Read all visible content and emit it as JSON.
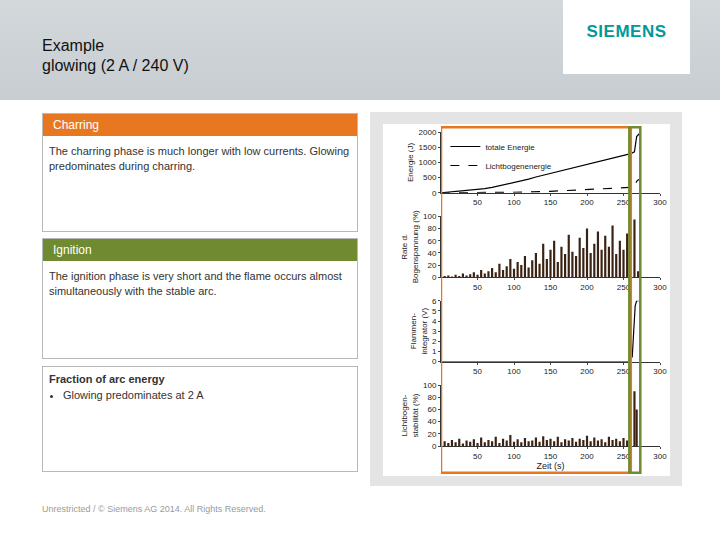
{
  "header": {
    "title": "Example",
    "subtitle": "glowing (2 A / 240 V)",
    "logo": "SIEMENS"
  },
  "panels": [
    {
      "title": "Charring",
      "color": "#e87722",
      "text": "The charring phase is much longer with low currents. Glowing predominates during charring.",
      "phase": {
        "start": 0,
        "end": 260
      }
    },
    {
      "title": "Ignition",
      "color": "#6f8a31",
      "text": "The ignition phase is very short and the flame occurs almost simultaneously with the stable arc.",
      "phase": {
        "start": 258,
        "end": 273
      }
    },
    {
      "title": "Fraction of arc energy",
      "bullets": [
        "Glowing predominates at 2 A"
      ]
    }
  ],
  "footer": "Unrestricted / © Siemens AG 2014. All Rights Reserved.",
  "chart_data": [
    {
      "type": "line",
      "ylabel": [
        "Energie (J)"
      ],
      "xlim": [
        0,
        300
      ],
      "xticks": [
        50,
        100,
        150,
        200,
        250,
        300
      ],
      "ylim": [
        0,
        2000
      ],
      "yticks": [
        0,
        500,
        1000,
        1500,
        2000
      ],
      "legend": "upper left",
      "series": [
        {
          "name": "totale Energie",
          "color": "#000000",
          "line_style": "solid",
          "x": [
            0,
            10,
            20,
            30,
            40,
            50,
            60,
            70,
            80,
            90,
            100,
            110,
            120,
            130,
            140,
            150,
            160,
            170,
            180,
            190,
            200,
            210,
            220,
            230,
            240,
            250,
            260,
            265,
            268,
            270,
            272
          ],
          "values": [
            0,
            20,
            40,
            60,
            80,
            110,
            140,
            180,
            230,
            280,
            340,
            400,
            450,
            520,
            580,
            650,
            700,
            760,
            820,
            880,
            940,
            1000,
            1060,
            1120,
            1180,
            1240,
            1290,
            1350,
            1850,
            1900,
            1950
          ]
        },
        {
          "name": "Lichtbogenenergie",
          "color": "#000000",
          "line_style": "dashed",
          "x": [
            0,
            50,
            100,
            150,
            200,
            250,
            260,
            265,
            268,
            270,
            272
          ],
          "values": [
            0,
            5,
            20,
            50,
            100,
            160,
            180,
            200,
            380,
            420,
            450
          ]
        }
      ]
    },
    {
      "type": "bar",
      "ylabel": [
        "Rate d.",
        "Bogenspannung (%)"
      ],
      "xlim": [
        0,
        300
      ],
      "xticks": [
        50,
        100,
        150,
        200,
        250,
        300
      ],
      "ylim": [
        0,
        100
      ],
      "yticks": [
        0,
        20,
        40,
        60,
        80,
        100
      ],
      "series": [
        {
          "color": "#3b2314",
          "x": [
            5,
            10,
            15,
            20,
            25,
            30,
            35,
            40,
            45,
            50,
            55,
            60,
            65,
            70,
            75,
            80,
            85,
            90,
            95,
            100,
            105,
            110,
            115,
            120,
            125,
            130,
            135,
            140,
            145,
            150,
            155,
            160,
            165,
            170,
            175,
            180,
            185,
            190,
            195,
            200,
            205,
            210,
            215,
            220,
            225,
            230,
            235,
            240,
            245,
            250,
            255,
            260,
            265,
            270
          ],
          "values": [
            2,
            3,
            1,
            4,
            2,
            6,
            3,
            5,
            8,
            4,
            12,
            6,
            10,
            15,
            8,
            22,
            12,
            18,
            30,
            14,
            25,
            20,
            35,
            16,
            28,
            40,
            22,
            55,
            30,
            45,
            60,
            25,
            50,
            38,
            70,
            42,
            35,
            65,
            48,
            80,
            40,
            55,
            75,
            45,
            68,
            50,
            85,
            38,
            60,
            45,
            72,
            30,
            95,
            10
          ]
        }
      ]
    },
    {
      "type": "line",
      "ylabel": [
        "Flammen-",
        "integrator (V)"
      ],
      "xlim": [
        0,
        300
      ],
      "xticks": [
        50,
        100,
        150,
        200,
        250,
        300
      ],
      "ylim": [
        0,
        6
      ],
      "yticks": [
        0,
        1,
        2,
        3,
        4,
        5,
        6
      ],
      "series": [
        {
          "color": "#000000",
          "line_style": "solid",
          "x": [
            0,
            100,
            200,
            258,
            262,
            264,
            266,
            268,
            272
          ],
          "values": [
            0,
            0,
            0,
            0,
            0.5,
            3,
            5.5,
            6,
            6
          ]
        }
      ]
    },
    {
      "type": "bar",
      "ylabel": [
        "Lichtbogen-",
        "stabilität (%)"
      ],
      "xlabel": "Zeit (s)",
      "xlim": [
        0,
        300
      ],
      "xticks": [
        50,
        100,
        150,
        200,
        250,
        300
      ],
      "ylim": [
        0,
        100
      ],
      "yticks": [
        0,
        20,
        40,
        60,
        80,
        100
      ],
      "series": [
        {
          "color": "#3b2314",
          "x": [
            5,
            10,
            15,
            20,
            25,
            30,
            35,
            40,
            45,
            50,
            55,
            60,
            65,
            70,
            75,
            80,
            85,
            90,
            95,
            100,
            105,
            110,
            115,
            120,
            125,
            130,
            135,
            140,
            145,
            150,
            155,
            160,
            165,
            170,
            175,
            180,
            185,
            190,
            195,
            200,
            205,
            210,
            215,
            220,
            225,
            230,
            235,
            240,
            245,
            250,
            255,
            260,
            265,
            268
          ],
          "values": [
            8,
            5,
            10,
            6,
            12,
            4,
            9,
            7,
            11,
            5,
            14,
            6,
            10,
            8,
            15,
            5,
            12,
            9,
            18,
            7,
            11,
            6,
            13,
            8,
            9,
            14,
            7,
            16,
            10,
            12,
            8,
            15,
            6,
            11,
            9,
            13,
            7,
            12,
            10,
            17,
            8,
            14,
            9,
            11,
            6,
            15,
            10,
            12,
            8,
            13,
            9,
            11,
            90,
            60
          ]
        }
      ]
    }
  ]
}
